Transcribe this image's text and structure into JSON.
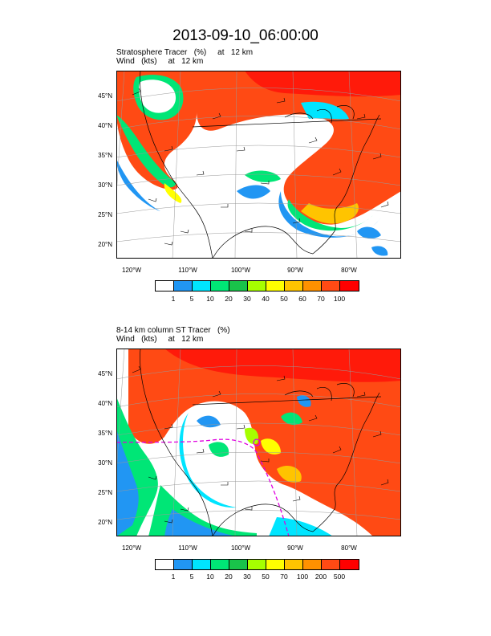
{
  "title": "2013-09-10_06:00:00",
  "panels": [
    {
      "title_line1": "Stratosphere Tracer   (%)     at   12 km",
      "title_line2": "Wind   (kts)     at   12 km",
      "lat_labels": [
        "45°N",
        "40°N",
        "35°N",
        "30°N",
        "25°N",
        "20°N"
      ],
      "lon_labels": [
        "120°W",
        "110°W",
        "100°W",
        "90°W",
        "80°W"
      ],
      "legend_labels": [
        "1",
        "5",
        "10",
        "20",
        "30",
        "40",
        "50",
        "60",
        "70",
        "100"
      ]
    },
    {
      "title_line1": "8-14 km column ST Tracer   (%)",
      "title_line2": "Wind   (kts)     at   12 km",
      "lat_labels": [
        "45°N",
        "40°N",
        "35°N",
        "30°N",
        "25°N",
        "20°N"
      ],
      "lon_labels": [
        "120°W",
        "110°W",
        "100°W",
        "90°W",
        "80°W"
      ],
      "legend_labels": [
        "1",
        "5",
        "10",
        "20",
        "30",
        "50",
        "70",
        "100",
        "200",
        "500"
      ]
    }
  ],
  "legend_colors": [
    "#ffffff",
    "#2196f3",
    "#00e5ff",
    "#00e676",
    "#19c34a",
    "#a6ff00",
    "#ffff00",
    "#ffc400",
    "#ff9100",
    "#ff4a14",
    "#ff0000"
  ]
}
